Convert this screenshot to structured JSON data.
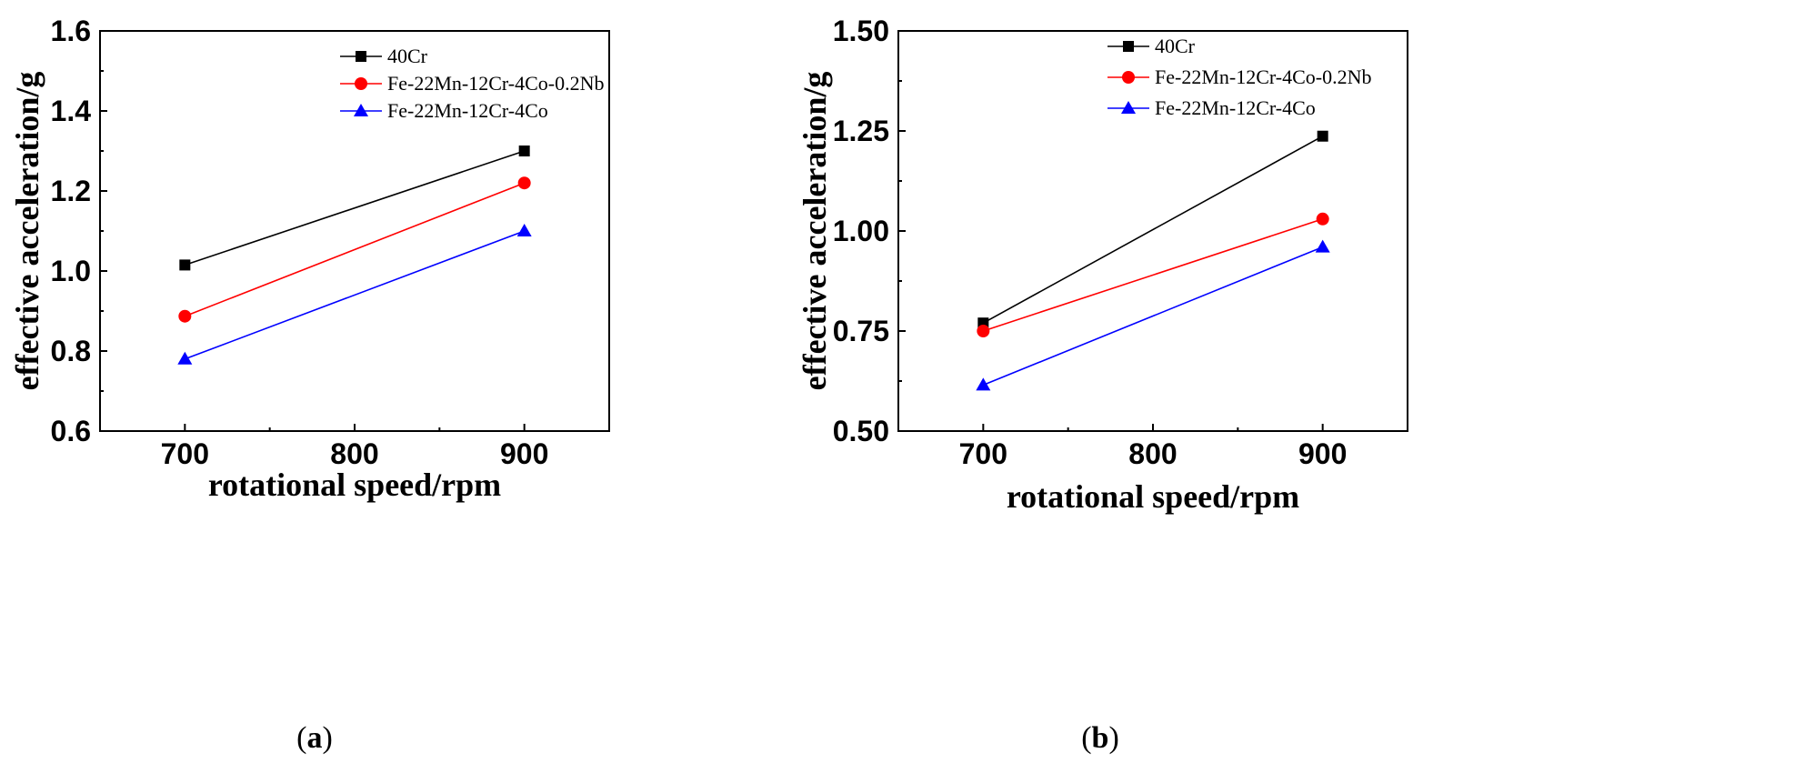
{
  "chart_data": [
    {
      "type": "line",
      "panel_label": "a",
      "xlabel": "rotational speed/rpm",
      "ylabel": "effective acceleration/g",
      "x": [
        700,
        900
      ],
      "xlim": [
        650,
        950
      ],
      "ylim": [
        0.6,
        1.6
      ],
      "xticks": [
        700,
        800,
        900
      ],
      "xtick_labels": [
        "700",
        "800",
        "900"
      ],
      "yticks": [
        0.6,
        0.8,
        1.0,
        1.2,
        1.4,
        1.6
      ],
      "ytick_labels": [
        "0.6",
        "0.8",
        "1.0",
        "1.2",
        "1.4",
        "1.6"
      ],
      "grid": false,
      "legend_position": "top-right",
      "series": [
        {
          "name": "40Cr",
          "values": [
            1.015,
            1.3
          ],
          "color": "#000000",
          "marker": "square"
        },
        {
          "name": "Fe-22Mn-12Cr-4Co-0.2Nb",
          "values": [
            0.887,
            1.22
          ],
          "color": "#ff0000",
          "marker": "circle"
        },
        {
          "name": "Fe-22Mn-12Cr-4Co",
          "values": [
            0.78,
            1.1
          ],
          "color": "#0000ff",
          "marker": "triangle"
        }
      ]
    },
    {
      "type": "line",
      "panel_label": "b",
      "xlabel": "rotational speed/rpm",
      "ylabel": "effective acceleration/g",
      "x": [
        700,
        900
      ],
      "xlim": [
        650,
        950
      ],
      "ylim": [
        0.5,
        1.5
      ],
      "xticks": [
        700,
        800,
        900
      ],
      "xtick_labels": [
        "700",
        "800",
        "900"
      ],
      "yticks": [
        0.5,
        0.75,
        1.0,
        1.25,
        1.5
      ],
      "ytick_labels": [
        "0.50",
        "0.75",
        "1.00",
        "1.25",
        "1.50"
      ],
      "grid": false,
      "legend_position": "top-right",
      "series": [
        {
          "name": "40Cr",
          "values": [
            0.77,
            1.237
          ],
          "color": "#000000",
          "marker": "square"
        },
        {
          "name": "Fe-22Mn-12Cr-4Co-0.2Nb",
          "values": [
            0.75,
            1.03
          ],
          "color": "#ff0000",
          "marker": "circle"
        },
        {
          "name": "Fe-22Mn-12Cr-4Co",
          "values": [
            0.615,
            0.96
          ],
          "color": "#0000ff",
          "marker": "triangle"
        }
      ]
    }
  ]
}
